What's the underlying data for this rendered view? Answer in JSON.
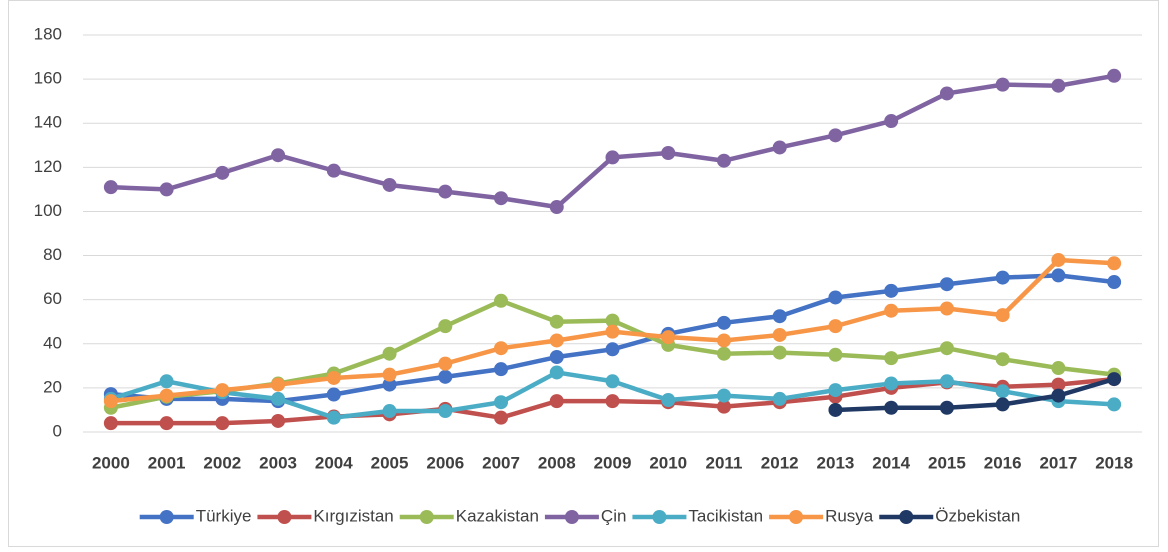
{
  "chart_data": {
    "type": "line",
    "categories": [
      "2000",
      "2001",
      "2002",
      "2003",
      "2004",
      "2005",
      "2006",
      "2007",
      "2008",
      "2009",
      "2010",
      "2011",
      "2012",
      "2013",
      "2014",
      "2015",
      "2016",
      "2017",
      "2018"
    ],
    "series": [
      {
        "name": "Türkiye",
        "color": "#4472c4",
        "values": [
          17.2,
          15,
          15,
          14,
          17,
          21.5,
          25,
          28.5,
          34,
          37.5,
          44.5,
          49.5,
          52.5,
          61,
          64,
          67,
          70,
          71,
          68
        ]
      },
      {
        "name": "Kırgızistan",
        "color": "#c0504d",
        "values": [
          4,
          4,
          4,
          5,
          7,
          8,
          10.5,
          6.5,
          14,
          14,
          13.5,
          11.5,
          13.5,
          16,
          20,
          22.5,
          20.5,
          21.5,
          24
        ]
      },
      {
        "name": "Kazakistan",
        "color": "#9bbb59",
        "values": [
          11,
          16,
          18.5,
          22,
          26.5,
          35.5,
          48,
          59.5,
          50,
          50.5,
          39.5,
          35.5,
          36,
          35,
          33.5,
          38,
          33,
          29,
          26
        ]
      },
      {
        "name": "Çin",
        "color": "#8064a2",
        "values": [
          111,
          110,
          117.5,
          125.5,
          118.5,
          112,
          109,
          106,
          102,
          124.5,
          126.5,
          123,
          129,
          134.5,
          141,
          153.5,
          157.5,
          157,
          161.5
        ]
      },
      {
        "name": "Tacikistan",
        "color": "#4bacc6",
        "values": [
          15,
          23,
          18,
          15,
          6.5,
          9.5,
          9.5,
          13.5,
          27,
          23,
          14.5,
          16.5,
          15,
          19,
          22,
          23,
          18.5,
          14,
          12.5
        ]
      },
      {
        "name": "Rusya",
        "color": "#f79646",
        "values": [
          14,
          16.5,
          19,
          21.5,
          24.5,
          26,
          31,
          38,
          41.5,
          45.5,
          43,
          41.5,
          44,
          48,
          55,
          56,
          53,
          78,
          76.5
        ]
      },
      {
        "name": "Özbekistan",
        "color": "#1f3864",
        "values": [
          null,
          null,
          null,
          null,
          null,
          null,
          null,
          null,
          null,
          null,
          null,
          null,
          null,
          10,
          11,
          11,
          12.5,
          16.5,
          24
        ]
      }
    ],
    "ylim": [
      0,
      180
    ],
    "yticks": [
      0,
      20,
      40,
      60,
      80,
      100,
      120,
      140,
      160,
      180
    ],
    "grid": true,
    "legend": "bottom"
  }
}
